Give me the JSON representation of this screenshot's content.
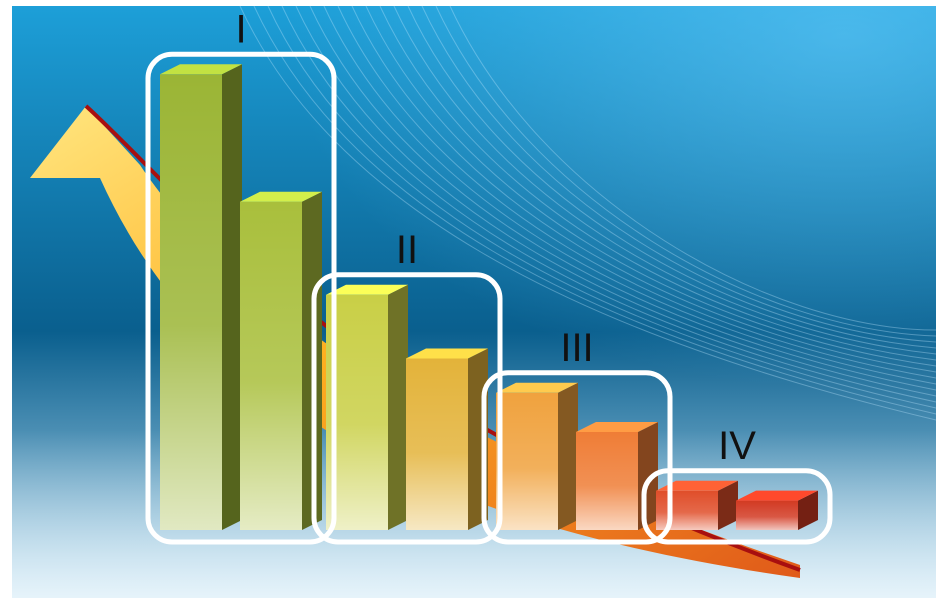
{
  "chart_data": {
    "type": "bar",
    "style": "3d-bars-with-descending-arrow",
    "groups": [
      {
        "label": "I",
        "values": [
          93,
          67
        ]
      },
      {
        "label": "II",
        "values": [
          48,
          35
        ]
      },
      {
        "label": "III",
        "values": [
          28,
          20
        ]
      },
      {
        "label": "IV",
        "values": [
          8,
          6
        ]
      }
    ],
    "bar_colors": [
      "#9bb535",
      "#a9bf3c",
      "#c9cf46",
      "#e3b33a",
      "#f0a23e",
      "#ef7d36",
      "#e04e2a",
      "#d23a23"
    ],
    "arrow_colors": {
      "head": "#ffe680",
      "mid": "#ffb020",
      "tail": "#e05a1a",
      "edge": "#a80f0f"
    },
    "background_colors": {
      "top": "#1d9fd8",
      "mid": "#0a5f8e",
      "bottom": "#b8def2"
    },
    "box_color": "#ffffff",
    "label_color": "#111111",
    "ylim": [
      0,
      100
    ],
    "grid": false,
    "legend": "none"
  }
}
